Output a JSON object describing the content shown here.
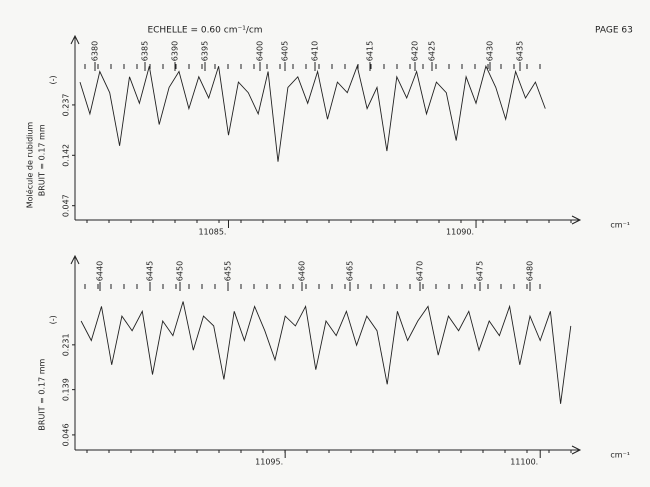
{
  "title": "ECHELLE = 0.60 cm⁻¹/cm",
  "page": "PAGE 63",
  "chart_data": [
    {
      "type": "line",
      "y_label": "Molécule de rubidium",
      "noise_label": "BRUIT = 0.17 mm",
      "marker": "(-)",
      "x_label": "cm⁻¹",
      "line_labels": [
        "6380",
        "6385",
        "6390",
        "6395",
        "6400",
        "6405",
        "6410",
        "6415",
        "6420",
        "6425",
        "6430",
        "6435"
      ],
      "xlim": [
        11081.9,
        11092.1
      ],
      "xticks": [
        {
          "value": 11085,
          "label": "11085."
        },
        {
          "value": 11090,
          "label": "11090."
        }
      ],
      "ylim": [
        0.02,
        0.35
      ],
      "yticks": [
        0.237,
        0.142,
        0.047
      ],
      "color": "#222",
      "x": [
        11082.0,
        11082.2,
        11082.4,
        11082.6,
        11082.8,
        11083.0,
        11083.2,
        11083.4,
        11083.6,
        11083.8,
        11084.0,
        11084.2,
        11084.4,
        11084.6,
        11084.8,
        11085.0,
        11085.2,
        11085.4,
        11085.6,
        11085.8,
        11086.0,
        11086.2,
        11086.4,
        11086.6,
        11086.8,
        11087.0,
        11087.2,
        11087.4,
        11087.6,
        11087.8,
        11088.0,
        11088.2,
        11088.4,
        11088.6,
        11088.8,
        11089.0,
        11089.2,
        11089.4,
        11089.6,
        11089.8,
        11090.0,
        11090.2,
        11090.4,
        11090.6,
        11090.8,
        11091.0,
        11091.2,
        11091.4
      ],
      "values": [
        0.28,
        0.22,
        0.3,
        0.26,
        0.16,
        0.29,
        0.24,
        0.31,
        0.2,
        0.27,
        0.3,
        0.23,
        0.29,
        0.25,
        0.31,
        0.18,
        0.28,
        0.26,
        0.22,
        0.3,
        0.13,
        0.27,
        0.29,
        0.24,
        0.3,
        0.21,
        0.28,
        0.26,
        0.31,
        0.23,
        0.27,
        0.15,
        0.29,
        0.25,
        0.3,
        0.22,
        0.28,
        0.26,
        0.17,
        0.29,
        0.24,
        0.31,
        0.27,
        0.21,
        0.3,
        0.25,
        0.28,
        0.23
      ]
    },
    {
      "type": "line",
      "noise_label": "BRUIT = 0.17 mm",
      "marker": "(-)",
      "x_label": "cm⁻¹",
      "line_labels": [
        "6440",
        "6445",
        "6450",
        "6455",
        "6460",
        "6465",
        "6470",
        "6475",
        "6480"
      ],
      "xlim": [
        11090.88,
        11100.78
      ],
      "xticks": [
        {
          "value": 11095,
          "label": "11095."
        },
        {
          "value": 11100,
          "label": "11100."
        }
      ],
      "ylim": [
        0.015,
        0.395
      ],
      "yticks": [
        0.231,
        0.139,
        0.046
      ],
      "color": "#222",
      "x": [
        11091.0,
        11091.2,
        11091.4,
        11091.6,
        11091.8,
        11092.0,
        11092.2,
        11092.4,
        11092.6,
        11092.8,
        11093.0,
        11093.2,
        11093.4,
        11093.6,
        11093.8,
        11094.0,
        11094.2,
        11094.4,
        11094.6,
        11094.8,
        11095.0,
        11095.2,
        11095.4,
        11095.6,
        11095.8,
        11096.0,
        11096.2,
        11096.4,
        11096.6,
        11096.8,
        11097.0,
        11097.2,
        11097.4,
        11097.6,
        11097.8,
        11098.0,
        11098.2,
        11098.4,
        11098.6,
        11098.8,
        11099.0,
        11099.2,
        11099.4,
        11099.6,
        11099.8,
        11100.0,
        11100.2,
        11100.4,
        11100.6
      ],
      "values": [
        0.28,
        0.24,
        0.31,
        0.19,
        0.29,
        0.26,
        0.3,
        0.17,
        0.28,
        0.25,
        0.32,
        0.22,
        0.29,
        0.27,
        0.16,
        0.3,
        0.24,
        0.31,
        0.26,
        0.2,
        0.29,
        0.27,
        0.31,
        0.18,
        0.28,
        0.25,
        0.3,
        0.23,
        0.29,
        0.26,
        0.15,
        0.3,
        0.24,
        0.28,
        0.31,
        0.21,
        0.29,
        0.26,
        0.3,
        0.22,
        0.28,
        0.25,
        0.31,
        0.19,
        0.29,
        0.24,
        0.3,
        0.11,
        0.27
      ]
    }
  ]
}
